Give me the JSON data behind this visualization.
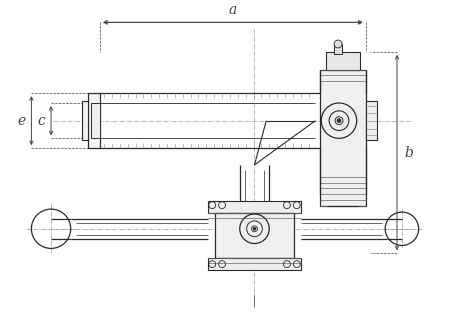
{
  "bg_color": "#ffffff",
  "line_color": "#2a2a2a",
  "dim_color": "#444444",
  "fig_width": 4.5,
  "fig_height": 3.13,
  "dpi": 100,
  "labels": {
    "a": "a",
    "b": "b",
    "c": "c",
    "e": "e"
  }
}
